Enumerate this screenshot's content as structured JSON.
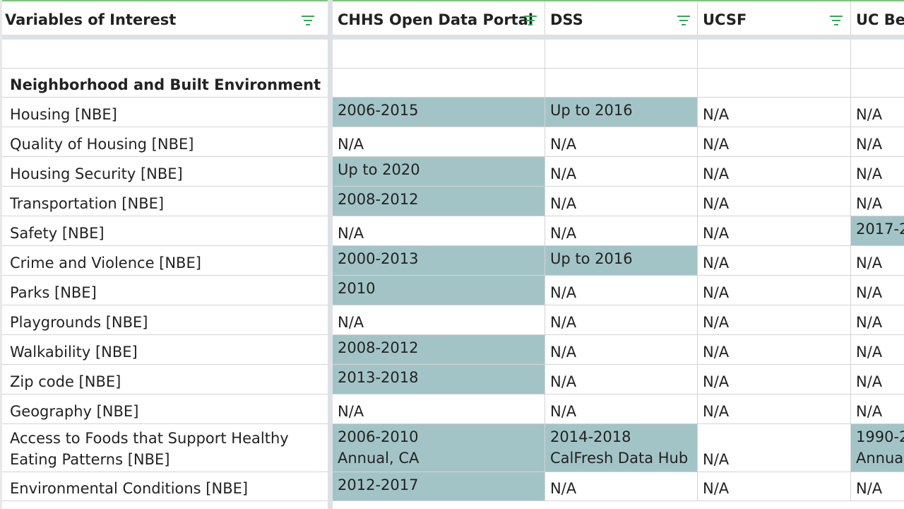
{
  "columns": [
    "Variables of Interest",
    "CHHS Open Data Portal",
    "DSS",
    "UCSF",
    "UC Ber"
  ],
  "section_title": "Neighborhood and Built Environment",
  "rows": [
    {
      "label": "Housing [NBE]",
      "chhs": "2006-2015",
      "dss": "Up to 2016",
      "ucsf": "N/A",
      "ucb": "N/A",
      "hl": [
        1,
        1,
        0,
        0
      ]
    },
    {
      "label": "Quality of Housing [NBE]",
      "chhs": "N/A",
      "dss": "N/A",
      "ucsf": "N/A",
      "ucb": "N/A",
      "hl": [
        0,
        0,
        0,
        0
      ]
    },
    {
      "label": "Housing Security [NBE]",
      "chhs": "Up to 2020",
      "dss": "N/A",
      "ucsf": "N/A",
      "ucb": "N/A",
      "hl": [
        1,
        0,
        0,
        0
      ]
    },
    {
      "label": "Transportation [NBE]",
      "chhs": "2008-2012",
      "dss": "N/A",
      "ucsf": "N/A",
      "ucb": "N/A",
      "hl": [
        1,
        0,
        0,
        0
      ]
    },
    {
      "label": "Safety [NBE]",
      "chhs": "N/A",
      "dss": "N/A",
      "ucsf": "N/A",
      "ucb": "2017-2",
      "hl": [
        0,
        0,
        0,
        1
      ]
    },
    {
      "label": "Crime and Violence [NBE]",
      "chhs": "2000-2013",
      "dss": "Up to 2016",
      "ucsf": "N/A",
      "ucb": "N/A",
      "hl": [
        1,
        1,
        0,
        0
      ]
    },
    {
      "label": "Parks [NBE]",
      "chhs": "2010",
      "dss": "N/A",
      "ucsf": "N/A",
      "ucb": "N/A",
      "hl": [
        1,
        0,
        0,
        0
      ]
    },
    {
      "label": "Playgrounds [NBE]",
      "chhs": "N/A",
      "dss": "N/A",
      "ucsf": "N/A",
      "ucb": "N/A",
      "hl": [
        0,
        0,
        0,
        0
      ]
    },
    {
      "label": "Walkability [NBE]",
      "chhs": "2008-2012",
      "dss": "N/A",
      "ucsf": "N/A",
      "ucb": "N/A",
      "hl": [
        1,
        0,
        0,
        0
      ]
    },
    {
      "label": "Zip code [NBE]",
      "chhs": "2013-2018",
      "dss": "N/A",
      "ucsf": "N/A",
      "ucb": "N/A",
      "hl": [
        1,
        0,
        0,
        0
      ]
    },
    {
      "label": "Geography [NBE]",
      "chhs": "N/A",
      "dss": "N/A",
      "ucsf": "N/A",
      "ucb": "N/A",
      "hl": [
        0,
        0,
        0,
        0
      ]
    },
    {
      "label": "Access to Foods that Support Healthy\nEating Patterns [NBE]",
      "chhs": "2006-2010\nAnnual, CA",
      "dss": "2014-2018\nCalFresh Data Hub",
      "ucsf": "N/A",
      "ucb": "1990-2\nAnnua",
      "hl": [
        1,
        1,
        0,
        1
      ]
    },
    {
      "label": "Environmental Conditions [NBE]",
      "chhs": "2012-2017",
      "dss": "N/A",
      "ucsf": "N/A",
      "ucb": "N/A",
      "hl": [
        1,
        0,
        0,
        0
      ]
    }
  ],
  "colors": {
    "highlight": "#a3c4c7",
    "filter_icon": "#3aa55d",
    "header_accent": "#7cc47c"
  }
}
